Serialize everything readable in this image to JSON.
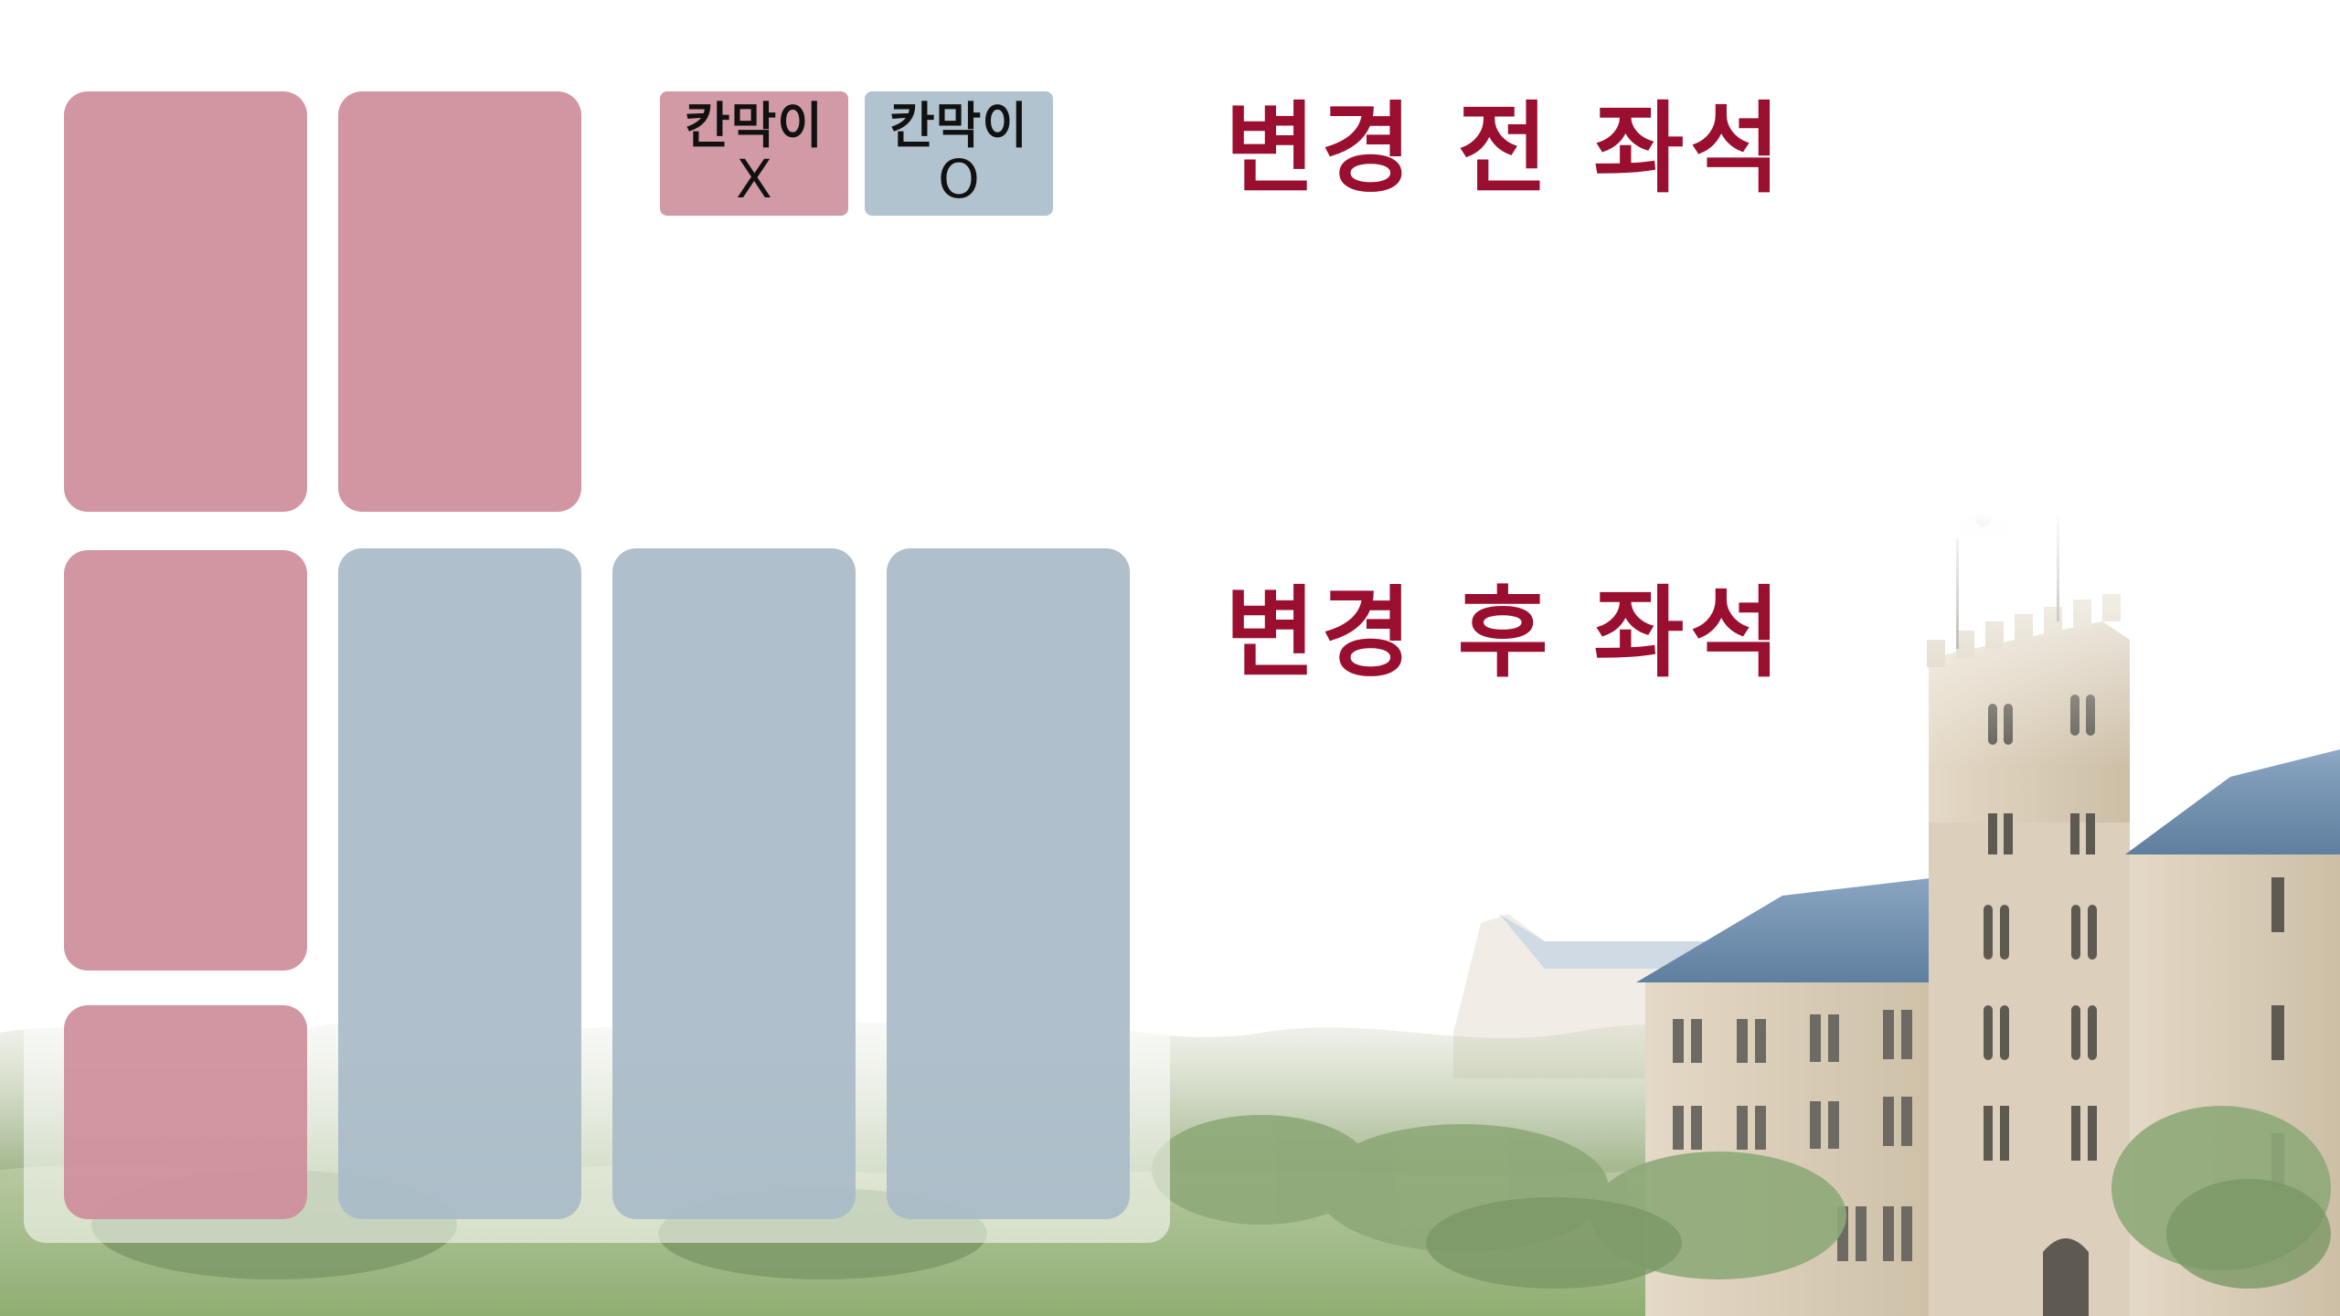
{
  "legend": {
    "no_partition": {
      "line1": "칸막이",
      "line2": "X",
      "color": "#d19aa4"
    },
    "partition": {
      "line1": "칸막이",
      "line2": "O",
      "color": "#b1c3cf"
    }
  },
  "headings": {
    "before": "변경 전 좌석",
    "after": "변경 후 좌석"
  },
  "colors": {
    "heading": "#9a0f2f",
    "seat_without_partition": "#cf8e9b",
    "seat_with_partition": "#a8bbc8"
  },
  "icons": {
    "building": "university-building-illustration",
    "flag": "korean-flag-icon"
  }
}
